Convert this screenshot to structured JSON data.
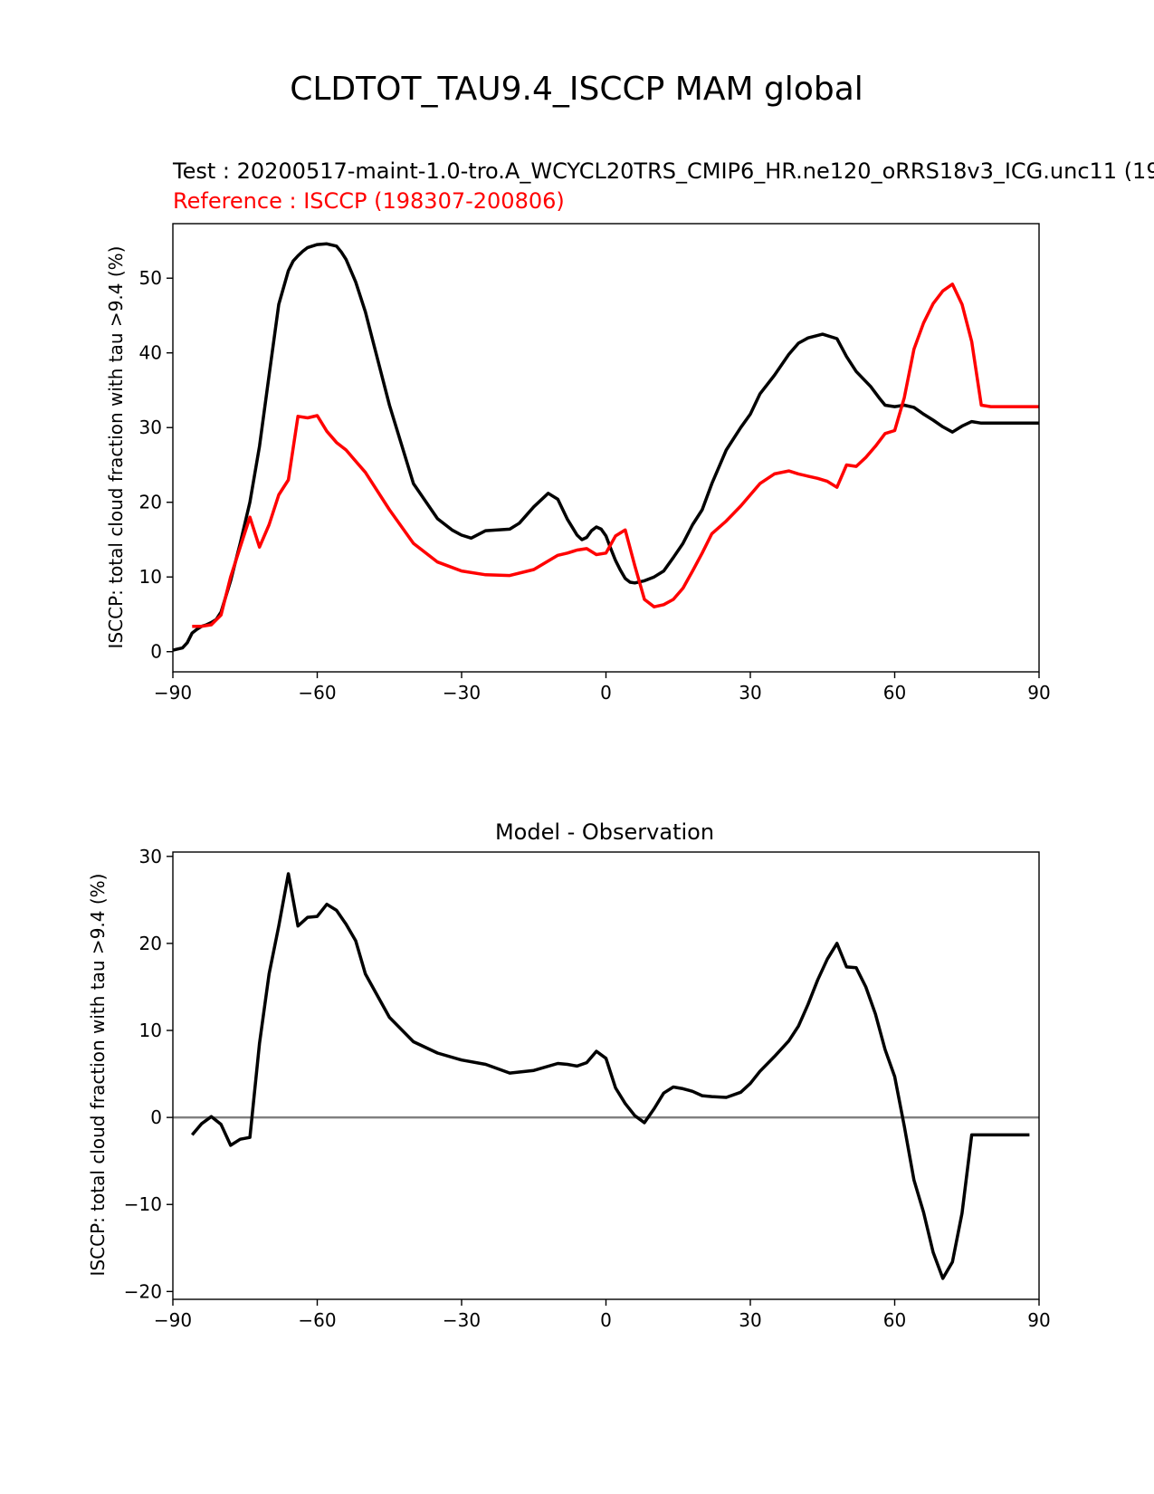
{
  "figure": {
    "suptitle": "CLDTOT_TAU9.4_ISCCP MAM global"
  },
  "colors": {
    "test": "#000000",
    "reference": "#ff0000",
    "zero_line": "#808080"
  },
  "chart_data": [
    {
      "type": "line",
      "title_test": "Test : 20200517-maint-1.0-tro.A_WCYCL20TRS_CMIP6_HR.ne120_oRRS18v3_ICG.unc11 (19",
      "title_reference": "Reference : ISCCP (198307-200806)",
      "xlabel": "",
      "ylabel": "ISCCP: total cloud fraction with tau >9.4 (%)",
      "xlim": [
        -90,
        90
      ],
      "ylim": [
        -2.7,
        57.3
      ],
      "xticks": [
        "−90",
        "−60",
        "−30",
        "0",
        "30",
        "60",
        "90"
      ],
      "xtick_values": [
        -90,
        -60,
        -30,
        0,
        30,
        60,
        90
      ],
      "yticks": [
        "0",
        "10",
        "20",
        "30",
        "40",
        "50"
      ],
      "ytick_values": [
        0,
        10,
        20,
        30,
        40,
        50
      ],
      "grid": false,
      "series": [
        {
          "role": "test",
          "x": [
            -90,
            -88,
            -87,
            -86,
            -85,
            -84,
            -83,
            -82,
            -81,
            -80,
            -78,
            -76,
            -74,
            -72,
            -70,
            -68,
            -66,
            -65,
            -64,
            -63,
            -62,
            -60,
            -58,
            -56,
            -55,
            -54,
            -52,
            -50,
            -48,
            -45,
            -40,
            -35,
            -32,
            -30,
            -28,
            -25,
            -20,
            -18,
            -15,
            -12,
            -10,
            -8,
            -6,
            -5,
            -4,
            -3,
            -2,
            -1,
            0,
            1,
            2,
            3,
            4,
            5,
            6,
            8,
            10,
            12,
            14,
            16,
            18,
            20,
            22,
            25,
            28,
            30,
            32,
            35,
            38,
            40,
            42,
            45,
            48,
            50,
            52,
            55,
            57,
            58,
            60,
            62,
            64,
            66,
            68,
            70,
            72,
            74,
            76,
            78,
            80,
            82,
            84,
            86,
            88,
            90
          ],
          "values": [
            0.2,
            0.5,
            1.2,
            2.5,
            3.0,
            3.4,
            3.6,
            3.9,
            4.3,
            5.3,
            9.5,
            14.5,
            20.0,
            27.5,
            37.0,
            46.5,
            51.0,
            52.3,
            53.0,
            53.6,
            54.1,
            54.5,
            54.6,
            54.3,
            53.5,
            52.5,
            49.5,
            45.5,
            40.5,
            33.0,
            22.5,
            17.8,
            16.3,
            15.6,
            15.2,
            16.2,
            16.4,
            17.2,
            19.4,
            21.2,
            20.4,
            17.7,
            15.6,
            15.0,
            15.3,
            16.2,
            16.7,
            16.4,
            15.5,
            13.8,
            12.2,
            10.9,
            9.8,
            9.3,
            9.2,
            9.5,
            10.0,
            10.8,
            12.6,
            14.5,
            17.0,
            19.0,
            22.5,
            27.0,
            30.0,
            31.8,
            34.5,
            37.0,
            39.8,
            41.3,
            42.0,
            42.5,
            41.9,
            39.5,
            37.5,
            35.5,
            33.8,
            33.0,
            32.8,
            33.0,
            32.7,
            31.8,
            31.0,
            30.1,
            29.4,
            30.2,
            30.8,
            30.6,
            30.6,
            30.6,
            30.6,
            30.6,
            30.6,
            30.6
          ]
        },
        {
          "role": "reference",
          "x": [
            -86,
            -84,
            -82,
            -80,
            -78,
            -76,
            -74,
            -72,
            -70,
            -68,
            -66,
            -64,
            -62,
            -60,
            -58,
            -56,
            -54,
            -52,
            -50,
            -45,
            -40,
            -35,
            -30,
            -25,
            -20,
            -15,
            -10,
            -8,
            -6,
            -4,
            -2,
            0,
            2,
            4,
            6,
            8,
            10,
            12,
            14,
            16,
            18,
            20,
            22,
            25,
            28,
            30,
            32,
            35,
            38,
            40,
            42,
            44,
            46,
            48,
            50,
            52,
            54,
            56,
            58,
            60,
            62,
            64,
            66,
            68,
            70,
            72,
            74,
            76,
            78,
            80,
            82,
            84,
            86,
            88,
            90
          ],
          "values": [
            3.4,
            3.4,
            3.6,
            4.9,
            10.0,
            14.0,
            18.0,
            14.0,
            17.0,
            21.0,
            23.0,
            31.5,
            31.3,
            31.6,
            29.5,
            28.0,
            27.0,
            25.5,
            24.0,
            19.0,
            14.5,
            12.0,
            10.8,
            10.3,
            10.2,
            11.0,
            12.9,
            13.2,
            13.6,
            13.8,
            13.0,
            13.2,
            15.5,
            16.3,
            11.5,
            7.0,
            6.0,
            6.3,
            7.0,
            8.5,
            10.8,
            13.2,
            15.8,
            17.5,
            19.5,
            21.0,
            22.5,
            23.8,
            24.2,
            23.8,
            23.5,
            23.2,
            22.8,
            22.0,
            25.0,
            24.8,
            26.0,
            27.5,
            29.2,
            29.6,
            34.0,
            40.5,
            44.0,
            46.6,
            48.3,
            49.2,
            46.5,
            41.5,
            33.0,
            32.8,
            32.8,
            32.8,
            32.8,
            32.8,
            32.8
          ]
        }
      ]
    },
    {
      "type": "line",
      "title": "Model - Observation",
      "xlabel": "",
      "ylabel": "ISCCP: total cloud fraction with tau >9.4 (%)",
      "xlim": [
        -90,
        90
      ],
      "ylim": [
        -20.9,
        30.5
      ],
      "xticks": [
        "−90",
        "−60",
        "−30",
        "0",
        "30",
        "60",
        "90"
      ],
      "xtick_values": [
        -90,
        -60,
        -30,
        0,
        30,
        60,
        90
      ],
      "yticks": [
        "−20",
        "−10",
        "0",
        "10",
        "20",
        "30"
      ],
      "ytick_values": [
        -20,
        -10,
        0,
        10,
        20,
        30
      ],
      "grid": false,
      "zero_line": true,
      "series": [
        {
          "role": "difference",
          "x": [
            -86,
            -84,
            -82,
            -80,
            -78,
            -76,
            -74,
            -72,
            -70,
            -68,
            -66,
            -64,
            -62,
            -60,
            -58,
            -56,
            -54,
            -52,
            -50,
            -45,
            -40,
            -35,
            -30,
            -25,
            -20,
            -15,
            -10,
            -8,
            -6,
            -4,
            -2,
            0,
            2,
            4,
            6,
            8,
            10,
            12,
            14,
            16,
            18,
            20,
            22,
            25,
            28,
            30,
            32,
            35,
            38,
            40,
            42,
            44,
            46,
            48,
            50,
            52,
            54,
            56,
            58,
            60,
            62,
            64,
            66,
            68,
            70,
            72,
            74,
            76,
            78,
            80,
            82,
            84,
            86,
            88
          ],
          "values": [
            -2.0,
            -0.7,
            0.1,
            -0.8,
            -3.2,
            -2.5,
            -2.3,
            8.5,
            16.5,
            22.0,
            28.0,
            22.0,
            23.0,
            23.1,
            24.5,
            23.8,
            22.2,
            20.3,
            16.5,
            11.5,
            8.7,
            7.4,
            6.6,
            6.1,
            5.1,
            5.4,
            6.2,
            6.1,
            5.9,
            6.3,
            7.6,
            6.8,
            3.4,
            1.6,
            0.2,
            -0.6,
            1.0,
            2.8,
            3.5,
            3.3,
            3.0,
            2.5,
            2.4,
            2.3,
            2.9,
            3.9,
            5.3,
            7.0,
            8.8,
            10.5,
            13.0,
            15.8,
            18.2,
            20.0,
            17.3,
            17.2,
            15.0,
            11.9,
            7.8,
            4.7,
            -1.0,
            -7.2,
            -10.9,
            -15.5,
            -18.5,
            -16.6,
            -11.0,
            -2.0,
            -2.0,
            -2.0,
            -2.0,
            -2.0,
            -2.0,
            -2.0
          ]
        }
      ]
    }
  ]
}
